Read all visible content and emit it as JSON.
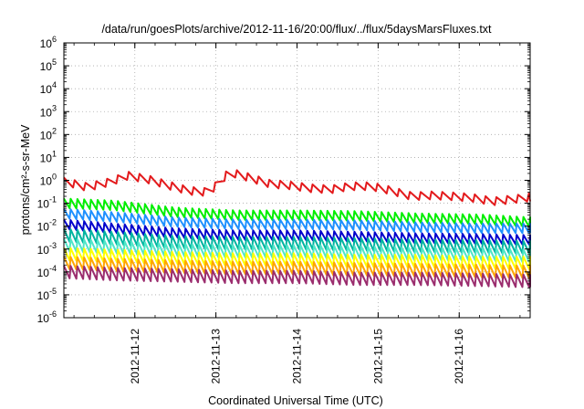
{
  "chart_data": {
    "type": "line",
    "title": "/data/run/goesPlots/archive/2012-11-16/20:00/flux/../flux/5daysMarsFluxes.txt",
    "xlabel": "Coordinated Universal Time (UTC)",
    "ylabel": "protons/cm²-s-sr-MeV",
    "log_y": true,
    "grid": true,
    "legend": "none",
    "xlim": [
      "2012-11-11T03:00",
      "2012-11-16T21:00"
    ],
    "ylim": [
      1e-06,
      1000000.0
    ],
    "x_ticks": [
      "2012-11-12",
      "2012-11-13",
      "2012-11-14",
      "2012-11-15",
      "2012-11-16"
    ],
    "y_ticks": [
      {
        "base": "10",
        "exp": "-6"
      },
      {
        "base": "10",
        "exp": "-5"
      },
      {
        "base": "10",
        "exp": "-4"
      },
      {
        "base": "10",
        "exp": "-3"
      },
      {
        "base": "10",
        "exp": "-2"
      },
      {
        "base": "10",
        "exp": "-1"
      },
      {
        "base": "10",
        "exp": "0"
      },
      {
        "base": "10",
        "exp": "1"
      },
      {
        "base": "10",
        "exp": "2"
      },
      {
        "base": "10",
        "exp": "3"
      },
      {
        "base": "10",
        "exp": "4"
      },
      {
        "base": "10",
        "exp": "5"
      },
      {
        "base": "10",
        "exp": "6"
      }
    ],
    "series": [
      {
        "color": "#e31a1c",
        "x": [
          "2012-11-11T03:00",
          "2012-11-11T10:00",
          "2012-11-11T16:00",
          "2012-11-11T22:00",
          "2012-11-12T04:00",
          "2012-11-12T10:00",
          "2012-11-12T16:00",
          "2012-11-12T22:00",
          "2012-11-13T04:00",
          "2012-11-13T10:00",
          "2012-11-13T16:00",
          "2012-11-13T22:00",
          "2012-11-14T04:00",
          "2012-11-14T10:00",
          "2012-11-14T16:00",
          "2012-11-14T22:00",
          "2012-11-15T04:00",
          "2012-11-15T10:00",
          "2012-11-15T16:00",
          "2012-11-15T22:00",
          "2012-11-16T04:00",
          "2012-11-16T10:00",
          "2012-11-16T16:00",
          "2012-11-16T21:00"
        ],
        "y": [
          0.9,
          0.5,
          0.8,
          1.6,
          1.1,
          0.6,
          0.35,
          0.3,
          2.3,
          1.3,
          0.7,
          0.6,
          0.45,
          0.4,
          0.55,
          0.55,
          0.35,
          0.2,
          0.22,
          0.2,
          0.17,
          0.12,
          0.15,
          0.18
        ]
      },
      {
        "color": "#00ee00",
        "x": [
          "2012-11-11T03:00",
          "2012-11-11T18:00",
          "2012-11-12T12:00",
          "2012-11-13T06:00",
          "2012-11-14T00:00",
          "2012-11-14T18:00",
          "2012-11-15T12:00",
          "2012-11-16T06:00",
          "2012-11-16T21:00"
        ],
        "y": [
          0.1,
          0.08,
          0.04,
          0.03,
          0.03,
          0.028,
          0.022,
          0.02,
          0.015
        ]
      },
      {
        "color": "#1e90ff",
        "x": [
          "2012-11-11T03:00",
          "2012-11-11T18:00",
          "2012-11-12T12:00",
          "2012-11-13T06:00",
          "2012-11-14T00:00",
          "2012-11-14T18:00",
          "2012-11-15T12:00",
          "2012-11-16T06:00",
          "2012-11-16T21:00"
        ],
        "y": [
          0.035,
          0.025,
          0.015,
          0.012,
          0.012,
          0.011,
          0.009,
          0.008,
          0.008
        ]
      },
      {
        "color": "#0000cc",
        "x": [
          "2012-11-11T03:00",
          "2012-11-11T18:00",
          "2012-11-12T12:00",
          "2012-11-13T06:00",
          "2012-11-14T00:00",
          "2012-11-14T18:00",
          "2012-11-15T12:00",
          "2012-11-16T06:00",
          "2012-11-16T21:00"
        ],
        "y": [
          0.012,
          0.008,
          0.005,
          0.004,
          0.004,
          0.0035,
          0.003,
          0.0028,
          0.0025
        ]
      },
      {
        "color": "#00b4a0",
        "x": [
          "2012-11-11T03:00",
          "2012-11-11T18:00",
          "2012-11-12T12:00",
          "2012-11-13T06:00",
          "2012-11-14T00:00",
          "2012-11-14T18:00",
          "2012-11-15T12:00",
          "2012-11-16T06:00",
          "2012-11-16T21:00"
        ],
        "y": [
          0.004,
          0.003,
          0.002,
          0.0018,
          0.0018,
          0.0016,
          0.0014,
          0.0013,
          0.0012
        ]
      },
      {
        "color": "#50e6c8",
        "x": [
          "2012-11-11T03:00",
          "2012-11-11T18:00",
          "2012-11-12T12:00",
          "2012-11-13T06:00",
          "2012-11-14T00:00",
          "2012-11-14T18:00",
          "2012-11-15T12:00",
          "2012-11-16T06:00",
          "2012-11-16T21:00"
        ],
        "y": [
          0.0015,
          0.0012,
          0.0009,
          0.0008,
          0.0008,
          0.0007,
          0.0006,
          0.0006,
          0.0005
        ]
      },
      {
        "color": "#ffff00",
        "x": [
          "2012-11-11T03:00",
          "2012-11-11T18:00",
          "2012-11-12T12:00",
          "2012-11-13T06:00",
          "2012-11-14T00:00",
          "2012-11-14T18:00",
          "2012-11-15T12:00",
          "2012-11-16T06:00",
          "2012-11-16T21:00"
        ],
        "y": [
          0.0006,
          0.0005,
          0.0004,
          0.00035,
          0.00035,
          0.0003,
          0.0003,
          0.00025,
          0.00025
        ]
      },
      {
        "color": "#ffa500",
        "x": [
          "2012-11-11T03:00",
          "2012-11-11T18:00",
          "2012-11-12T12:00",
          "2012-11-13T06:00",
          "2012-11-14T00:00",
          "2012-11-14T18:00",
          "2012-11-15T12:00",
          "2012-11-16T06:00",
          "2012-11-16T21:00"
        ],
        "y": [
          0.00025,
          0.0002,
          0.00017,
          0.00015,
          0.00015,
          0.00013,
          0.00012,
          0.00011,
          0.0001
        ]
      },
      {
        "color": "#9b2d6e",
        "x": [
          "2012-11-11T03:00",
          "2012-11-11T18:00",
          "2012-11-12T12:00",
          "2012-11-13T06:00",
          "2012-11-14T00:00",
          "2012-11-14T18:00",
          "2012-11-15T12:00",
          "2012-11-16T06:00",
          "2012-11-16T21:00"
        ],
        "y": [
          0.0001,
          8e-05,
          7e-05,
          6e-05,
          6e-05,
          5e-05,
          5e-05,
          4.5e-05,
          4e-05
        ]
      }
    ]
  }
}
